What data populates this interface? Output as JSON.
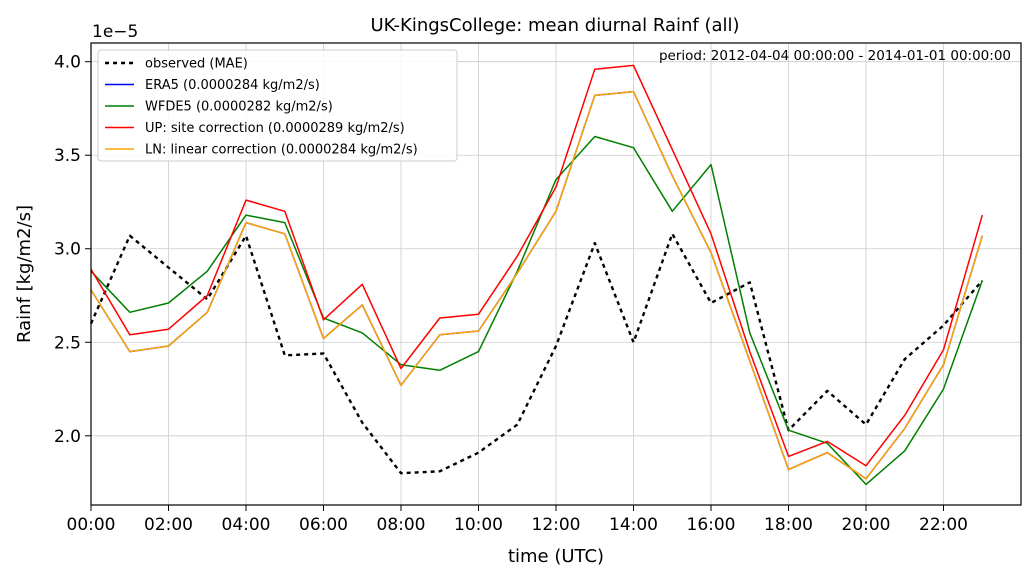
{
  "chart_data": {
    "type": "line",
    "title": "UK-KingsCollege: mean diurnal Rainf (all)",
    "period_note": "period: 2012-04-04 00:00:00 - 2014-01-01 00:00:00",
    "xlabel": "time (UTC)",
    "ylabel": "Rainf [kg/m2/s]",
    "y_multiplier_label": "1e−5",
    "ylim": [
      1.63,
      4.1
    ],
    "xlim": [
      0,
      24
    ],
    "grid": true,
    "legend_placement": "top-left",
    "x_tick_hours": [
      0,
      2,
      4,
      6,
      8,
      10,
      12,
      14,
      16,
      18,
      20,
      22
    ],
    "x_tick_labels": [
      "00:00",
      "02:00",
      "04:00",
      "06:00",
      "08:00",
      "10:00",
      "12:00",
      "14:00",
      "16:00",
      "18:00",
      "20:00",
      "22:00"
    ],
    "y_ticks": [
      2.0,
      2.5,
      3.0,
      3.5,
      4.0
    ],
    "y_tick_labels": [
      "2.0",
      "2.5",
      "3.0",
      "3.5",
      "4.0"
    ],
    "x": [
      0,
      1,
      2,
      3,
      4,
      5,
      6,
      7,
      8,
      9,
      10,
      11,
      12,
      13,
      14,
      15,
      16,
      17,
      18,
      19,
      20,
      21,
      22,
      23
    ],
    "series": [
      {
        "name": "observed (MAE)",
        "color": "#000000",
        "dashed": true,
        "values": [
          2.6,
          3.07,
          2.9,
          2.73,
          3.07,
          2.43,
          2.44,
          2.07,
          1.8,
          1.81,
          1.91,
          2.06,
          2.48,
          3.03,
          2.5,
          3.08,
          2.71,
          2.82,
          2.03,
          2.24,
          2.06,
          2.41,
          2.59,
          2.83
        ]
      },
      {
        "name": "ERA5 (0.0000284 kg/m2/s)",
        "color": "#0000ff",
        "dashed": false,
        "values": [
          2.78,
          2.45,
          2.48,
          2.66,
          3.14,
          3.08,
          2.52,
          2.7,
          2.27,
          2.54,
          2.56,
          2.87,
          3.2,
          3.82,
          3.84,
          3.39,
          2.98,
          2.4,
          1.82,
          1.91,
          1.77,
          2.04,
          2.38,
          3.07
        ]
      },
      {
        "name": "WFDE5 (0.0000282 kg/m2/s)",
        "color": "#008000",
        "dashed": false,
        "values": [
          2.88,
          2.66,
          2.71,
          2.88,
          3.18,
          3.14,
          2.63,
          2.55,
          2.38,
          2.35,
          2.45,
          2.88,
          3.37,
          3.6,
          3.54,
          3.2,
          3.45,
          2.55,
          2.03,
          1.96,
          1.74,
          1.92,
          2.25,
          2.83
        ]
      },
      {
        "name": "UP: site correction (0.0000289 kg/m2/s)",
        "color": "#ff0000",
        "dashed": false,
        "values": [
          2.89,
          2.54,
          2.57,
          2.75,
          3.26,
          3.2,
          2.62,
          2.81,
          2.36,
          2.63,
          2.65,
          2.96,
          3.33,
          3.96,
          3.98,
          3.53,
          3.08,
          2.45,
          1.89,
          1.97,
          1.84,
          2.11,
          2.46,
          3.18
        ]
      },
      {
        "name": "LN: linear correction (0.0000284 kg/m2/s)",
        "color": "#ffa500",
        "dashed": false,
        "values": [
          2.78,
          2.45,
          2.48,
          2.66,
          3.14,
          3.08,
          2.52,
          2.7,
          2.27,
          2.54,
          2.56,
          2.87,
          3.2,
          3.82,
          3.84,
          3.39,
          2.98,
          2.4,
          1.82,
          1.91,
          1.77,
          2.04,
          2.38,
          3.07
        ]
      }
    ]
  }
}
